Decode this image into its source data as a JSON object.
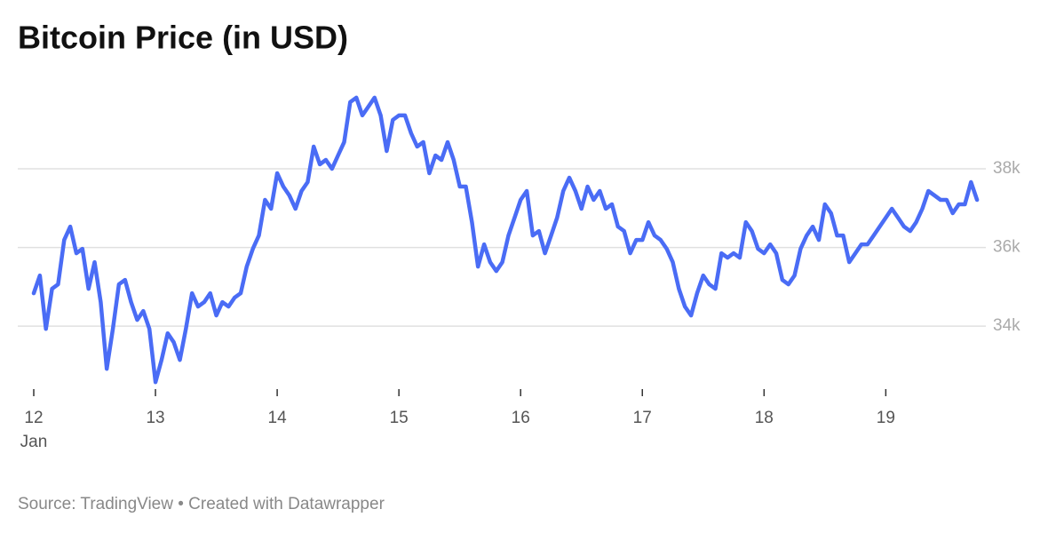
{
  "chart_data": {
    "type": "line",
    "title": "Bitcoin Price (in USD)",
    "source": "Source: TradingView • Created with Datawrapper",
    "color": "#4a6cf5",
    "xlim": [
      12,
      19.8
    ],
    "xticks": [
      12,
      13,
      14,
      15,
      16,
      17,
      18,
      19
    ],
    "xtick_sublabel": "Jan",
    "ylim": [
      32400,
      40100
    ],
    "yticks": [
      {
        "value": 34000,
        "label": "34k"
      },
      {
        "value": 36000,
        "label": "36k"
      },
      {
        "value": 38000,
        "label": "38k"
      }
    ],
    "grid": true,
    "x": [
      12.0,
      12.05,
      12.1,
      12.15,
      12.2,
      12.25,
      12.3,
      12.35,
      12.4,
      12.45,
      12.5,
      12.55,
      12.6,
      12.65,
      12.7,
      12.75,
      12.8,
      12.85,
      12.9,
      12.95,
      13.0,
      13.05,
      13.1,
      13.15,
      13.2,
      13.25,
      13.3,
      13.35,
      13.4,
      13.45,
      13.5,
      13.55,
      13.6,
      13.65,
      13.7,
      13.75,
      13.8,
      13.85,
      13.9,
      13.95,
      14.0,
      14.05,
      14.1,
      14.15,
      14.2,
      14.25,
      14.3,
      14.35,
      14.4,
      14.45,
      14.5,
      14.55,
      14.6,
      14.65,
      14.7,
      14.75,
      14.8,
      14.85,
      14.9,
      14.95,
      15.0,
      15.05,
      15.1,
      15.15,
      15.2,
      15.25,
      15.3,
      15.35,
      15.4,
      15.45,
      15.5,
      15.55,
      15.6,
      15.65,
      15.7,
      15.75,
      15.8,
      15.85,
      15.9,
      15.95,
      16.0,
      16.05,
      16.1,
      16.15,
      16.2,
      16.25,
      16.3,
      16.35,
      16.4,
      16.45,
      16.5,
      16.55,
      16.6,
      16.65,
      16.7,
      16.75,
      16.8,
      16.85,
      16.9,
      16.95,
      17.0,
      17.05,
      17.1,
      17.15,
      17.2,
      17.25,
      17.3,
      17.35,
      17.4,
      17.45,
      17.5,
      17.55,
      17.6,
      17.65,
      17.7,
      17.75,
      17.8,
      17.85,
      17.9,
      17.95,
      18.0,
      18.05,
      18.1,
      18.15,
      18.2,
      18.25,
      18.3,
      18.35,
      18.4,
      18.45,
      18.5,
      18.55,
      18.6,
      18.65,
      18.7,
      18.75,
      18.8,
      18.85,
      18.9,
      18.95,
      19.0,
      19.05,
      19.1,
      19.15,
      19.2,
      19.25,
      19.3,
      19.35,
      19.4,
      19.45,
      19.5,
      19.55,
      19.6,
      19.65,
      19.7,
      19.75
    ],
    "values": [
      34836,
      35288,
      33932,
      34949,
      35062,
      36192,
      36531,
      35853,
      35966,
      34949,
      35627,
      34610,
      32915,
      33932,
      35062,
      35175,
      34610,
      34158,
      34384,
      33932,
      32576,
      33141,
      33819,
      33593,
      33141,
      33932,
      34836,
      34497,
      34610,
      34836,
      34271,
      34610,
      34497,
      34723,
      34836,
      35514,
      35966,
      36305,
      37209,
      36983,
      37887,
      37548,
      37322,
      36983,
      37435,
      37661,
      38565,
      38113,
      38226,
      38000,
      38339,
      38678,
      39695,
      39808,
      39356,
      39582,
      39808,
      39356,
      38452,
      39243,
      39356,
      39356,
      38904,
      38565,
      38678,
      37887,
      38339,
      38226,
      38678,
      38226,
      37548,
      37548,
      36644,
      35514,
      36079,
      35627,
      35401,
      35627,
      36305,
      36757,
      37209,
      37435,
      36305,
      36418,
      35853,
      36305,
      36757,
      37435,
      37774,
      37435,
      36983,
      37548,
      37209,
      37435,
      36983,
      37096,
      36531,
      36418,
      35853,
      36192,
      36192,
      36644,
      36305,
      36192,
      35966,
      35627,
      34949,
      34497,
      34271,
      34836,
      35288,
      35062,
      34949,
      35853,
      35740,
      35853,
      35740,
      36644,
      36418,
      35966,
      35853,
      36079,
      35853,
      35175,
      35062,
      35288,
      35966,
      36305,
      36531,
      36192,
      37096,
      36870,
      36305,
      36305,
      35627,
      35853,
      36079,
      36079,
      36305,
      36531,
      36757,
      36983,
      36757,
      36531,
      36418,
      36644,
      36983,
      37435,
      37322,
      37209,
      37209,
      36870,
      37096,
      37096,
      37661,
      37209
    ]
  }
}
